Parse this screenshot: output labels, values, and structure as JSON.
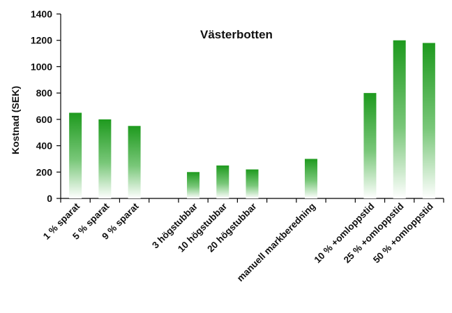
{
  "chart_data": {
    "type": "bar",
    "title": "Västerbotten",
    "ylabel": "Kostnad (SEK)",
    "xlabel": "",
    "ylim": [
      0,
      1400
    ],
    "yticks": [
      "0",
      "200",
      "400",
      "600",
      "800",
      "1000",
      "1200",
      "1400"
    ],
    "grid": false,
    "legend": "none",
    "bar_color": "#1e9a1e",
    "categories": [
      "1 % sparat",
      "5 % sparat",
      "9 % sparat",
      "",
      "3 högstubbar",
      "10 högstubbar",
      "20 högstubbar",
      "",
      "manuell markberedning",
      "",
      "10 % +omloppstid",
      "25 % +omloppstid",
      "50 % +omloppstid"
    ],
    "values": [
      650,
      600,
      550,
      null,
      200,
      250,
      220,
      null,
      300,
      null,
      800,
      1200,
      1180
    ]
  }
}
